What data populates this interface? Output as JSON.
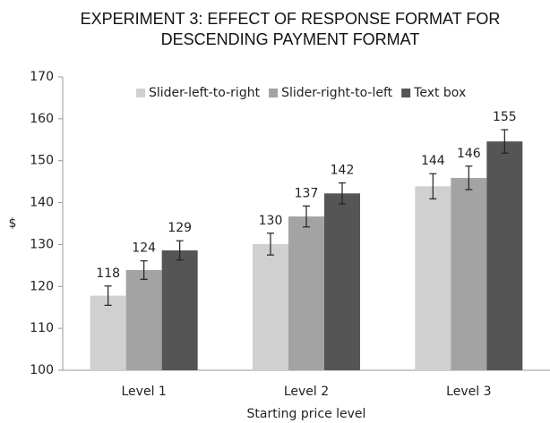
{
  "chart_data": {
    "type": "bar",
    "title": [
      "EXPERIMENT 3: EFFECT OF RESPONSE FORMAT FOR",
      "DESCENDING PAYMENT FORMAT"
    ],
    "x_label": "Starting price level",
    "y_label": "$",
    "categories": [
      "Level 1",
      "Level 2",
      "Level 3"
    ],
    "series": [
      {
        "name": "Slider-left-to-right",
        "color": "#d0d0d0",
        "values": [
          117.8,
          130.1,
          143.9
        ],
        "errors": [
          2.3,
          2.6,
          3.0
        ],
        "value_labels": [
          "118",
          "130",
          "144"
        ]
      },
      {
        "name": "Slider-right-to-left",
        "color": "#a3a3a3",
        "values": [
          123.9,
          136.7,
          145.9
        ],
        "errors": [
          2.2,
          2.5,
          2.8
        ],
        "value_labels": [
          "124",
          "137",
          "146"
        ]
      },
      {
        "name": "Text box",
        "color": "#555555",
        "values": [
          128.6,
          142.2,
          154.6
        ],
        "errors": [
          2.3,
          2.5,
          2.8
        ],
        "value_labels": [
          "129",
          "142",
          "155"
        ]
      }
    ],
    "ylim": [
      100,
      170
    ],
    "yticks": [
      100,
      110,
      120,
      130,
      140,
      150,
      160,
      170
    ],
    "grid": false,
    "legend": "top"
  }
}
